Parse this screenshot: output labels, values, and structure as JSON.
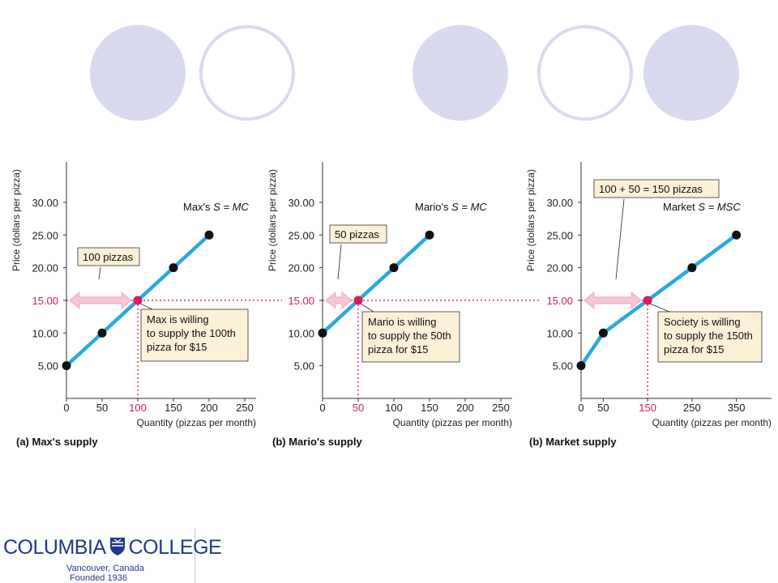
{
  "slide": {
    "circle_fill": "#d9d9ef",
    "circle_stroke": "#d9d9ef"
  },
  "logo": {
    "left_text": "COLUMBIA",
    "right_text": "COLLEGE",
    "line1": "Vancouver, Canada",
    "line2": "Founded 1936",
    "color": "#1f3a8a"
  },
  "colors": {
    "line": "#29a9e0",
    "point": "#111111",
    "highlight": "#d81b60",
    "arrow": "#f6c6d6",
    "callout_fill": "#fcf1d7"
  },
  "chart_data": [
    {
      "type": "line",
      "panel_id": "a",
      "caption": "(a) Max's supply",
      "xlabel": "Quantity (pizzas per month)",
      "ylabel": "Price (dollars per pizza)",
      "xticks": [
        0,
        50,
        100,
        150,
        200,
        250
      ],
      "xtick_labels": [
        "0",
        "50",
        "100",
        "150",
        "200",
        "250"
      ],
      "yticks": [
        5,
        10,
        15,
        20,
        25,
        30
      ],
      "ytick_labels": [
        "5.00",
        "10.00",
        "15.00",
        "20.00",
        "25.00",
        "30.00"
      ],
      "xlim": [
        0,
        260
      ],
      "ylim": [
        0,
        34
      ],
      "series_label_prefix": "Max's ",
      "series_label_math": "S = MC",
      "points": [
        [
          0,
          5
        ],
        [
          50,
          10
        ],
        [
          100,
          15
        ],
        [
          150,
          20
        ],
        [
          200,
          25
        ]
      ],
      "highlight": {
        "x": 100,
        "y": 15,
        "x_label": "100",
        "y_label": "15.00"
      },
      "arrow_label": "100 pizzas",
      "callout": [
        "Max is willing",
        "to supply the 100th",
        "pizza for $15"
      ]
    },
    {
      "type": "line",
      "panel_id": "b",
      "caption": "(b) Mario's supply",
      "xlabel": "Quantity (pizzas per month)",
      "ylabel": "Price (dollars per pizza)",
      "xticks": [
        0,
        50,
        100,
        150,
        200,
        250
      ],
      "xtick_labels": [
        "0",
        "50",
        "100",
        "150",
        "200",
        "250"
      ],
      "yticks": [
        5,
        10,
        15,
        20,
        25,
        30
      ],
      "ytick_labels": [
        "5.00",
        "10.00",
        "15.00",
        "20.00",
        "25.00",
        "30.00"
      ],
      "xlim": [
        0,
        260
      ],
      "ylim": [
        0,
        34
      ],
      "series_label_prefix": "Mario's ",
      "series_label_math": "S = MC",
      "points": [
        [
          0,
          10
        ],
        [
          50,
          15
        ],
        [
          100,
          20
        ],
        [
          150,
          25
        ]
      ],
      "highlight": {
        "x": 50,
        "y": 15,
        "x_label": "50",
        "y_label": "15.00"
      },
      "arrow_label": "50 pizzas",
      "callout": [
        "Mario is willing",
        "to supply the 50th",
        "pizza for $15"
      ]
    },
    {
      "type": "line",
      "panel_id": "c",
      "caption": "(b) Market supply",
      "xlabel": "Quantity (pizzas per month)",
      "ylabel": "Price (dollars per pizza)",
      "xticks": [
        0,
        50,
        150,
        250,
        350
      ],
      "xtick_labels": [
        "0",
        "50",
        "150",
        "250",
        "350"
      ],
      "yticks": [
        5,
        10,
        15,
        20,
        25,
        30
      ],
      "ytick_labels": [
        "5.00",
        "10.00",
        "15.00",
        "20.00",
        "25.00",
        "30.00"
      ],
      "xlim": [
        0,
        400
      ],
      "ylim": [
        0,
        34
      ],
      "series_label_prefix": "Market ",
      "series_label_math": "S = MSC",
      "points": [
        [
          0,
          5
        ],
        [
          50,
          10
        ],
        [
          150,
          15
        ],
        [
          250,
          20
        ],
        [
          350,
          25
        ]
      ],
      "highlight": {
        "x": 150,
        "y": 15,
        "x_label": "150",
        "y_label": "15.00"
      },
      "arrow_label": "100 + 50 = 150 pizzas",
      "callout": [
        "Society is willing",
        "to supply the 150th",
        "pizza for $15"
      ]
    }
  ]
}
